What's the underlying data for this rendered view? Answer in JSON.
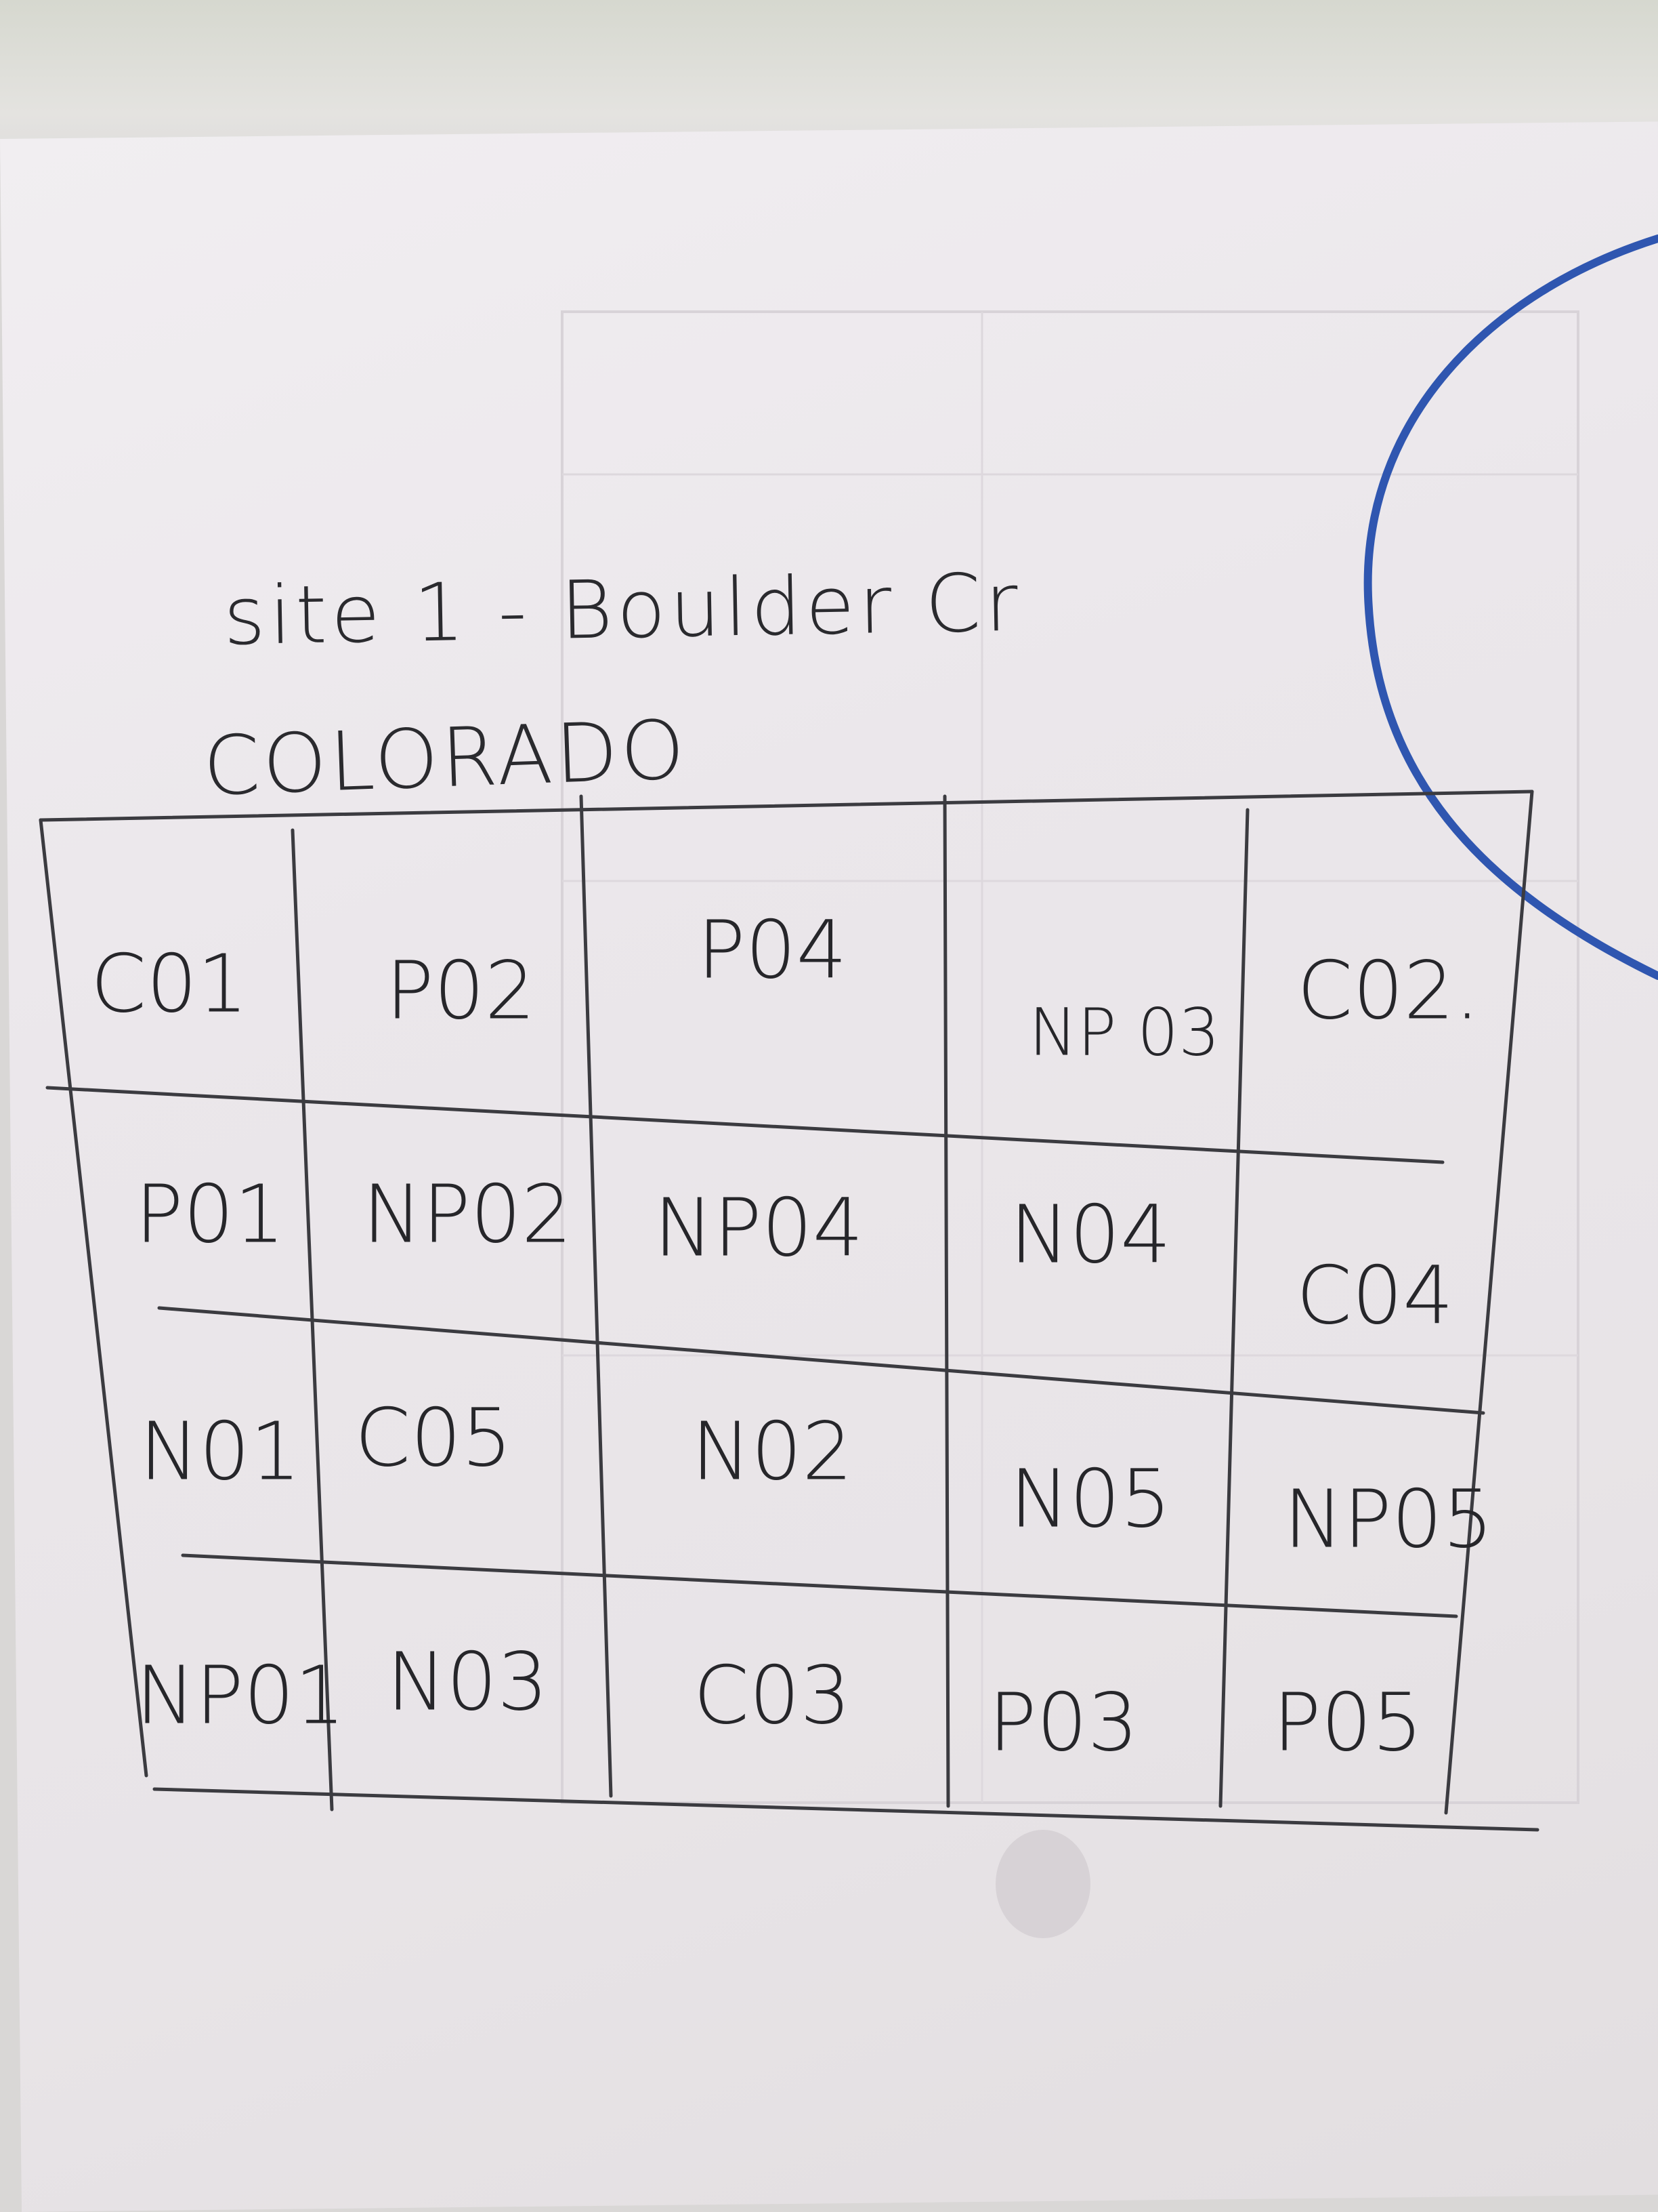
{
  "header": {
    "site": "site 1 - Boulder Cr",
    "state": "COLORADO"
  },
  "grid": {
    "rows": [
      [
        "C01",
        "P02",
        "P04",
        "NP 03",
        "C02."
      ],
      [
        "P01",
        "NP02",
        "NP04",
        "N04",
        "C04"
      ],
      [
        "N01",
        "C05",
        "N02",
        "N05",
        "NP05"
      ],
      [
        "NP01",
        "N03",
        "C03",
        "P03",
        "P05"
      ]
    ]
  },
  "colors": {
    "ink": "#26262a",
    "pen_circle": "#2f56b0",
    "paper": "#ebe7eb"
  }
}
